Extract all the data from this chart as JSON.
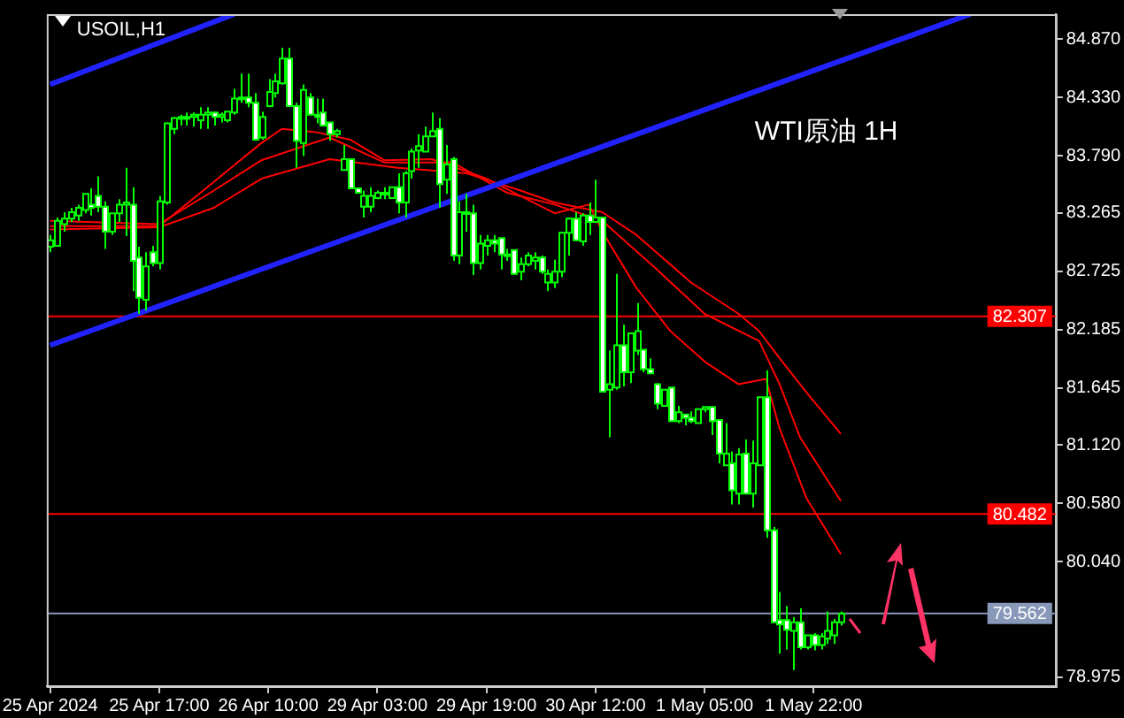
{
  "chart_data": {
    "type": "candlestick",
    "title": "USOIL,H1",
    "annotations": [
      "WTI原油 1H"
    ],
    "categories": [
      "25 Apr 2024",
      null,
      null,
      null,
      null,
      null,
      null,
      null,
      null,
      null,
      null,
      null,
      null,
      null,
      null,
      null,
      "25 Apr 17:00",
      null,
      null,
      null,
      null,
      null,
      null,
      null,
      null,
      null,
      null,
      null,
      null,
      null,
      null,
      null,
      "26 Apr 10:00",
      null,
      null,
      null,
      null,
      null,
      null,
      null,
      null,
      null,
      null,
      null,
      null,
      null,
      null,
      null,
      "29 Apr 03:00",
      null,
      null,
      null,
      null,
      null,
      null,
      null,
      null,
      null,
      null,
      null,
      null,
      null,
      null,
      null,
      "29 Apr 19:00",
      null,
      null,
      null,
      null,
      null,
      null,
      null,
      null,
      null,
      null,
      null,
      null,
      null,
      null,
      null,
      "30 Apr 12:00",
      null,
      null,
      null,
      null,
      null,
      null,
      null,
      null,
      null,
      null,
      null,
      null,
      null,
      null,
      null,
      "1 May 05:00",
      null,
      null,
      null,
      null,
      null,
      null,
      null,
      null,
      null,
      null,
      null,
      null,
      null,
      null,
      null,
      "1 May 22:00",
      null,
      null,
      null,
      null,
      null,
      null,
      null,
      null,
      null,
      null,
      null,
      null,
      null,
      null,
      null,
      null,
      null,
      null,
      null,
      null,
      null,
      null,
      null,
      null,
      null,
      null,
      null,
      null,
      null,
      null,
      null,
      null,
      null,
      null,
      null
    ],
    "ylim": [
      78.89,
      85.1
    ],
    "yticks": [
      {
        "value": 84.87,
        "label": "84.870"
      },
      {
        "value": 84.33,
        "label": "84.330"
      },
      {
        "value": 83.79,
        "label": "83.790"
      },
      {
        "value": 83.265,
        "label": "83.265"
      },
      {
        "value": 82.725,
        "label": "82.725"
      },
      {
        "value": 82.185,
        "label": "82.185"
      },
      {
        "value": 81.645,
        "label": "81.645"
      },
      {
        "value": 81.12,
        "label": "81.120"
      },
      {
        "value": 80.58,
        "label": "80.580"
      },
      {
        "value": 80.04,
        "label": "80.040"
      },
      {
        "value": 78.975,
        "label": "78.975"
      }
    ],
    "ref_lines": [
      {
        "axis": "y",
        "value": 82.307,
        "label": "82.307",
        "color": "#ff0000"
      },
      {
        "axis": "y",
        "value": 80.482,
        "label": "80.482",
        "color": "#ff0000"
      },
      {
        "axis": "y",
        "value": 79.562,
        "label": "79.562",
        "color": "#8898b8"
      }
    ],
    "series": [
      {
        "type": "line",
        "color": "#2222ff",
        "values": [
          84.45,
          null,
          null,
          null,
          null,
          null,
          null,
          null,
          null,
          null,
          null,
          null,
          null,
          null,
          null,
          null,
          null,
          null,
          null,
          null,
          null,
          null,
          null,
          null,
          null,
          null,
          null,
          85.1,
          null,
          null,
          null,
          null,
          null,
          null,
          null,
          null,
          null,
          null,
          null,
          null,
          null,
          null,
          null,
          null,
          null,
          null,
          null,
          null,
          null,
          null,
          null,
          null,
          null,
          null,
          null,
          null,
          null,
          null,
          null,
          null,
          null,
          null,
          null,
          null,
          null,
          null,
          null,
          null,
          null,
          null,
          null,
          null,
          null,
          null,
          null,
          null,
          null,
          null,
          null,
          null,
          null,
          null,
          null,
          null,
          null,
          null,
          null,
          null,
          null,
          null,
          null,
          null,
          null,
          null,
          null,
          null,
          null,
          null,
          null,
          null,
          null,
          null,
          null,
          null,
          null,
          null,
          null,
          null,
          null,
          null,
          null,
          null,
          null,
          null,
          null,
          null,
          null,
          null,
          null,
          null,
          null,
          null,
          null,
          null,
          null,
          null,
          null,
          null,
          null,
          null,
          null,
          null,
          null,
          null,
          null,
          null,
          null,
          null,
          null,
          null,
          null,
          null,
          null,
          null,
          null,
          null,
          null,
          null
        ]
      },
      {
        "type": "line",
        "color": "#2222ff",
        "values": [
          82.04,
          null,
          null,
          null,
          null,
          null,
          null,
          null,
          null,
          null,
          null,
          null,
          null,
          null,
          null,
          null,
          null,
          null,
          null,
          null,
          null,
          null,
          null,
          null,
          null,
          null,
          null,
          null,
          null,
          null,
          null,
          null,
          null,
          null,
          null,
          null,
          null,
          null,
          null,
          null,
          null,
          null,
          null,
          null,
          null,
          null,
          null,
          null,
          null,
          null,
          null,
          null,
          null,
          null,
          null,
          null,
          null,
          null,
          null,
          null,
          null,
          null,
          null,
          null,
          null,
          null,
          null,
          null,
          null,
          null,
          null,
          null,
          null,
          null,
          null,
          null,
          null,
          null,
          null,
          null,
          null,
          null,
          null,
          null,
          null,
          null,
          null,
          null,
          null,
          null,
          null,
          null,
          null,
          null,
          null,
          null,
          null,
          null,
          null,
          null,
          null,
          null,
          null,
          null,
          null,
          null,
          null,
          null,
          null,
          null,
          null,
          null,
          null,
          null,
          null,
          null,
          null,
          null,
          null,
          null,
          null,
          null,
          null,
          null,
          null,
          null,
          null,
          null,
          null,
          null,
          null,
          null,
          null,
          null,
          null,
          85.1,
          null,
          null,
          null,
          null,
          null,
          null,
          null,
          null,
          null,
          null,
          null,
          null
        ]
      },
      {
        "type": "line",
        "color": "#ff0000",
        "values": [
          83.14,
          null,
          null,
          null,
          null,
          null,
          null,
          null,
          null,
          null,
          null,
          null,
          null,
          null,
          null,
          null,
          83.14,
          null,
          null,
          null,
          null,
          null,
          null,
          null,
          83.55,
          null,
          null,
          null,
          null,
          null,
          null,
          83.91,
          null,
          null,
          84.04,
          null,
          null,
          null,
          null,
          84.01,
          null,
          null,
          null,
          null,
          83.94,
          null,
          null,
          null,
          null,
          83.75,
          null,
          null,
          null,
          null,
          null,
          null,
          83.76,
          null,
          null,
          null,
          null,
          null,
          null,
          null,
          83.58,
          null,
          null,
          null,
          null,
          null,
          null,
          null,
          null,
          null,
          83.26,
          null,
          null,
          null,
          null,
          83.34,
          null,
          83.09,
          null,
          null,
          null,
          null,
          82.57,
          null,
          null,
          null,
          null,
          82.17,
          null,
          null,
          null,
          null,
          81.89,
          null,
          null,
          null,
          null,
          81.68,
          null,
          null,
          null,
          81.73,
          null,
          81.27,
          null,
          null,
          null,
          80.62,
          null,
          null,
          null,
          null,
          80.11,
          null,
          null,
          null,
          null,
          null,
          null,
          null,
          null,
          null,
          null,
          null,
          null,
          null,
          null,
          null,
          null,
          null,
          null,
          null,
          null,
          null,
          null,
          null,
          null,
          null,
          null,
          null,
          null,
          null,
          null,
          null
        ]
      },
      {
        "type": "line",
        "color": "#ff0000",
        "values": [
          83.19,
          null,
          null,
          null,
          null,
          null,
          null,
          null,
          null,
          null,
          null,
          null,
          null,
          null,
          null,
          null,
          83.16,
          null,
          null,
          null,
          null,
          null,
          null,
          null,
          83.47,
          null,
          null,
          null,
          null,
          null,
          null,
          83.75,
          null,
          null,
          null,
          null,
          null,
          null,
          null,
          null,
          null,
          83.96,
          null,
          null,
          null,
          null,
          null,
          null,
          null,
          83.73,
          null,
          null,
          null,
          null,
          null,
          null,
          null,
          null,
          null,
          83.73,
          null,
          null,
          null,
          null,
          null,
          null,
          null,
          83.45,
          null,
          null,
          null,
          null,
          null,
          null,
          83.34,
          null,
          null,
          null,
          null,
          null,
          null,
          83.19,
          null,
          null,
          null,
          null,
          null,
          null,
          null,
          82.74,
          null,
          null,
          null,
          null,
          null,
          null,
          82.33,
          null,
          null,
          null,
          null,
          null,
          null,
          null,
          82.08,
          null,
          null,
          81.68,
          null,
          null,
          81.19,
          null,
          null,
          null,
          null,
          null,
          80.6,
          null,
          null,
          null,
          null,
          null,
          null,
          null,
          null,
          null,
          null,
          null,
          null,
          null,
          null,
          null,
          null,
          null,
          null,
          null,
          null,
          null,
          null,
          null,
          null,
          null,
          null,
          null,
          null,
          null,
          null,
          null
        ]
      },
      {
        "type": "line",
        "color": "#ff0000",
        "values": [
          83.11,
          null,
          null,
          null,
          null,
          null,
          null,
          null,
          null,
          null,
          null,
          null,
          null,
          null,
          null,
          null,
          83.13,
          null,
          null,
          null,
          null,
          null,
          null,
          null,
          83.31,
          null,
          null,
          null,
          null,
          null,
          null,
          83.58,
          null,
          null,
          null,
          null,
          null,
          null,
          null,
          null,
          null,
          83.76,
          null,
          null,
          null,
          null,
          null,
          null,
          null,
          null,
          null,
          83.68,
          null,
          null,
          null,
          null,
          null,
          null,
          null,
          null,
          null,
          83.63,
          null,
          null,
          null,
          null,
          null,
          null,
          null,
          83.47,
          null,
          null,
          null,
          null,
          83.36,
          null,
          null,
          null,
          null,
          null,
          null,
          83.27,
          null,
          null,
          null,
          null,
          83.06,
          null,
          null,
          null,
          null,
          null,
          null,
          null,
          82.62,
          null,
          null,
          null,
          null,
          null,
          null,
          82.33,
          null,
          null,
          82.17,
          null,
          null,
          81.92,
          null,
          null,
          null,
          81.6,
          null,
          null,
          null,
          null,
          81.22,
          null,
          null,
          null,
          null,
          null,
          null,
          null,
          null,
          null,
          null,
          null,
          null,
          null,
          null,
          null,
          null,
          null,
          null,
          null,
          null,
          null,
          null,
          null,
          null,
          null,
          null,
          null,
          null,
          null,
          null,
          null
        ]
      },
      {
        "color": "#00ff00",
        "ohlc": [
          [
            82.95,
            83.06,
            82.9,
            83.01
          ],
          [
            82.96,
            83.22,
            82.95,
            83.19
          ],
          [
            83.16,
            83.27,
            83.09,
            83.21
          ],
          [
            83.21,
            83.31,
            83.18,
            83.27
          ],
          [
            83.24,
            83.34,
            83.19,
            83.31
          ],
          [
            83.29,
            83.44,
            83.26,
            83.44
          ],
          [
            83.34,
            83.49,
            83.24,
            83.31
          ],
          [
            83.42,
            83.6,
            83.27,
            83.32
          ],
          [
            83.32,
            83.37,
            82.93,
            83.09
          ],
          [
            83.09,
            83.26,
            83.06,
            83.26
          ],
          [
            83.26,
            83.39,
            83.18,
            83.34
          ],
          [
            83.34,
            83.68,
            83.05,
            83.36
          ],
          [
            83.34,
            83.5,
            82.54,
            82.82
          ],
          [
            82.85,
            82.95,
            82.33,
            82.48
          ],
          [
            82.46,
            82.9,
            82.36,
            82.77
          ],
          [
            82.9,
            82.96,
            82.77,
            82.8
          ],
          [
            82.8,
            83.42,
            82.74,
            83.37
          ],
          [
            83.36,
            84.1,
            83.34,
            84.09
          ],
          [
            84.04,
            84.15,
            83.99,
            84.14
          ],
          [
            84.14,
            84.17,
            84.07,
            84.15
          ],
          [
            84.15,
            84.19,
            84.07,
            84.15
          ],
          [
            84.15,
            84.19,
            84.06,
            84.17
          ],
          [
            84.12,
            84.24,
            84.04,
            84.17
          ],
          [
            84.17,
            84.24,
            84.04,
            84.19
          ],
          [
            84.19,
            84.2,
            84.07,
            84.15
          ],
          [
            84.15,
            84.19,
            84.1,
            84.17
          ],
          [
            84.12,
            84.2,
            84.1,
            84.2
          ],
          [
            84.19,
            84.41,
            84.17,
            84.32
          ],
          [
            84.32,
            84.55,
            84.28,
            84.33
          ],
          [
            84.33,
            84.55,
            84.24,
            84.28
          ],
          [
            84.28,
            84.37,
            83.93,
            83.94
          ],
          [
            83.96,
            84.2,
            83.94,
            84.15
          ],
          [
            84.25,
            84.5,
            84.24,
            84.38
          ],
          [
            84.37,
            84.55,
            84.33,
            84.48
          ],
          [
            84.46,
            84.79,
            84.45,
            84.69
          ],
          [
            84.69,
            84.79,
            84.24,
            84.25
          ],
          [
            84.25,
            84.28,
            83.68,
            83.93
          ],
          [
            83.91,
            84.45,
            83.79,
            84.4
          ],
          [
            84.33,
            84.37,
            84.17,
            84.17
          ],
          [
            84.17,
            84.32,
            84.09,
            84.15
          ],
          [
            84.19,
            84.32,
            84.07,
            84.07
          ],
          [
            84.1,
            84.1,
            83.93,
            83.99
          ],
          [
            83.99,
            84.04,
            83.96,
            84.02
          ],
          [
            83.66,
            83.89,
            83.66,
            83.76
          ],
          [
            83.76,
            83.76,
            83.49,
            83.49
          ],
          [
            83.49,
            83.5,
            83.44,
            83.45
          ],
          [
            83.32,
            83.47,
            83.22,
            83.42
          ],
          [
            83.32,
            83.5,
            83.27,
            83.42
          ],
          [
            83.4,
            83.47,
            83.39,
            83.45
          ],
          [
            83.45,
            83.5,
            83.39,
            83.44
          ],
          [
            83.4,
            83.5,
            83.39,
            83.5
          ],
          [
            83.5,
            83.63,
            83.26,
            83.36
          ],
          [
            83.36,
            83.65,
            83.22,
            83.63
          ],
          [
            83.65,
            83.86,
            83.58,
            83.83
          ],
          [
            83.84,
            83.99,
            83.68,
            83.88
          ],
          [
            83.83,
            84.06,
            83.83,
            83.97
          ],
          [
            83.97,
            84.19,
            83.97,
            84.02
          ],
          [
            84.04,
            84.14,
            83.31,
            83.53
          ],
          [
            83.57,
            83.89,
            83.44,
            83.71
          ],
          [
            83.76,
            83.78,
            82.82,
            82.87
          ],
          [
            82.87,
            83.37,
            82.79,
            83.27
          ],
          [
            83.27,
            83.44,
            83.09,
            83.26
          ],
          [
            83.26,
            83.34,
            82.69,
            82.8
          ],
          [
            82.8,
            83.06,
            82.74,
            82.98
          ],
          [
            82.96,
            83.06,
            82.87,
            83.01
          ],
          [
            83.01,
            83.06,
            82.9,
            82.98
          ],
          [
            83.03,
            83.03,
            82.74,
            82.88
          ],
          [
            82.88,
            82.93,
            82.82,
            82.87
          ],
          [
            82.92,
            82.92,
            82.69,
            82.7
          ],
          [
            82.72,
            82.85,
            82.64,
            82.79
          ],
          [
            82.79,
            82.9,
            82.77,
            82.87
          ],
          [
            82.82,
            82.9,
            82.74,
            82.85
          ],
          [
            82.85,
            82.87,
            82.7,
            82.72
          ],
          [
            82.62,
            82.74,
            82.54,
            82.7
          ],
          [
            82.62,
            82.83,
            82.57,
            82.72
          ],
          [
            82.72,
            83.09,
            82.67,
            83.08
          ],
          [
            83.08,
            83.22,
            82.87,
            83.21
          ],
          [
            83.21,
            83.27,
            83.01,
            83.01
          ],
          [
            83,
            83.26,
            82.96,
            83.24
          ],
          [
            83.24,
            83.36,
            83.06,
            83.18
          ],
          [
            83.18,
            83.57,
            83.18,
            83.22
          ],
          [
            83.22,
            83.22,
            81.61,
            81.61
          ],
          [
            81.63,
            81.99,
            81.19,
            81.68
          ],
          [
            81.65,
            82.7,
            81.63,
            82.04
          ],
          [
            82.04,
            82.23,
            81.66,
            81.79
          ],
          [
            81.79,
            82.15,
            81.69,
            82.15
          ],
          [
            81.99,
            82.43,
            81.95,
            82.17
          ],
          [
            82,
            82,
            81.79,
            81.82
          ],
          [
            81.82,
            81.92,
            81.78,
            81.78
          ],
          [
            81.68,
            81.69,
            81.45,
            81.5
          ],
          [
            81.48,
            81.63,
            81.48,
            81.63
          ],
          [
            81.65,
            81.65,
            81.34,
            81.34
          ],
          [
            81.34,
            81.48,
            81.32,
            81.42
          ],
          [
            81.4,
            81.4,
            81.3,
            81.37
          ],
          [
            81.37,
            81.43,
            81.32,
            81.34
          ],
          [
            81.32,
            81.45,
            81.32,
            81.45
          ],
          [
            81.45,
            81.47,
            81.42,
            81.47
          ],
          [
            81.47,
            81.47,
            81.21,
            81.34
          ],
          [
            81.35,
            81.35,
            80.95,
            81.04
          ],
          [
            80.93,
            81.32,
            80.93,
            81.04
          ],
          [
            80.95,
            81.06,
            80.57,
            80.7
          ],
          [
            80.67,
            81.09,
            80.57,
            81.03
          ],
          [
            81.04,
            81.17,
            80.67,
            80.67
          ],
          [
            80.67,
            81.16,
            80.54,
            80.95
          ],
          [
            80.93,
            81.56,
            80.93,
            81.56
          ],
          [
            81.56,
            81.81,
            80.26,
            80.33
          ],
          [
            80.33,
            80.36,
            79.48,
            79.48
          ],
          [
            79.5,
            79.76,
            79.19,
            79.46
          ],
          [
            79.5,
            79.63,
            79.23,
            79.41
          ],
          [
            79.4,
            79.53,
            79.04,
            79.48
          ],
          [
            79.48,
            79.61,
            79.23,
            79.25
          ],
          [
            79.25,
            79.36,
            79.23,
            79.36
          ],
          [
            79.36,
            79.38,
            79.22,
            79.27
          ],
          [
            79.27,
            79.38,
            79.23,
            79.35
          ],
          [
            79.33,
            79.58,
            79.28,
            79.4
          ],
          [
            79.36,
            79.51,
            79.28,
            79.48
          ],
          [
            79.48,
            79.58,
            79.45,
            79.56
          ],
          null,
          null,
          null,
          null,
          null,
          null,
          null,
          null,
          null,
          null,
          null,
          null,
          null,
          null,
          null,
          null,
          null,
          null,
          null,
          null,
          null,
          null,
          null,
          null,
          null,
          null,
          null,
          null,
          null,
          null,
          null
        ]
      }
    ]
  }
}
